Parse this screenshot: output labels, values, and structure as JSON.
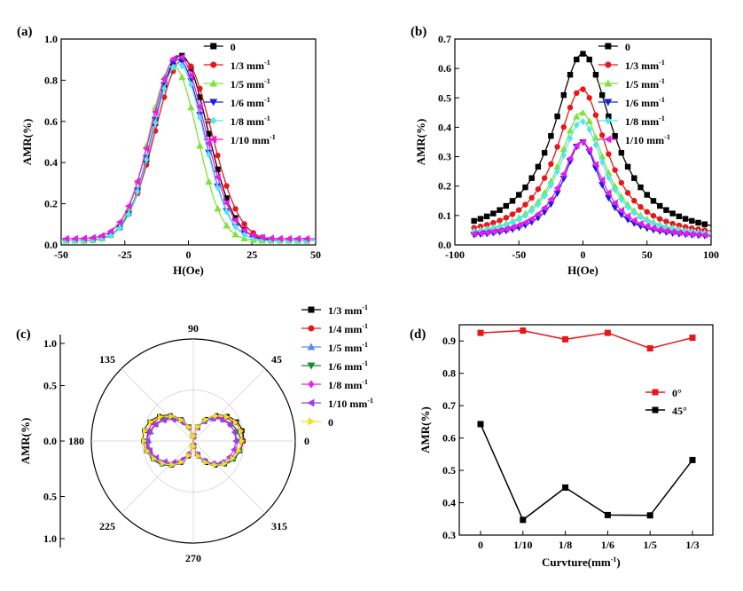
{
  "chart_data": [
    {
      "panel": "(a)",
      "type": "line",
      "xlabel": "H(Oe)",
      "ylabel": "AMR(%)",
      "xlim": [
        -50,
        50
      ],
      "ylim": [
        0,
        1.0
      ],
      "xticks": [
        "-50",
        "-25",
        "0",
        "25",
        "50"
      ],
      "yticks": [
        "0.0",
        "0.2",
        "0.4",
        "0.6",
        "0.8",
        "1.0"
      ],
      "legend_position": "top-right",
      "series": [
        {
          "name": "0",
          "color": "#000000",
          "marker": "square",
          "peak_x": -3,
          "peak_y": 0.92,
          "width": 10.5,
          "base": 0.02
        },
        {
          "name": "1/3 mm-1",
          "color": "#e8161b",
          "marker": "circle",
          "peak_x": -2,
          "peak_y": 0.9,
          "width": 11,
          "base": 0.02
        },
        {
          "name": "1/5 mm-1",
          "color": "#7ee33a",
          "marker": "triangle-up",
          "peak_x": -6,
          "peak_y": 0.87,
          "width": 9.5,
          "base": 0.02
        },
        {
          "name": "1/6 mm-1",
          "color": "#1c1ce0",
          "marker": "triangle-down",
          "peak_x": -4,
          "peak_y": 0.9,
          "width": 10,
          "base": 0.02
        },
        {
          "name": "1/8 mm-1",
          "color": "#4ee8ee",
          "marker": "diamond",
          "peak_x": -4,
          "peak_y": 0.88,
          "width": 10,
          "base": 0.02
        },
        {
          "name": "1/10 mm-1",
          "color": "#e81ce8",
          "marker": "triangle-left",
          "peak_x": -4,
          "peak_y": 0.92,
          "width": 10.5,
          "base": 0.03
        }
      ]
    },
    {
      "panel": "(b)",
      "type": "line",
      "xlabel": "H(Oe)",
      "ylabel": "AMR(%)",
      "xlim": [
        -100,
        100
      ],
      "ylim": [
        0,
        0.7
      ],
      "xticks": [
        "-100",
        "-50",
        "0",
        "50",
        "100"
      ],
      "yticks": [
        "0.0",
        "0.1",
        "0.2",
        "0.3",
        "0.4",
        "0.5",
        "0.6",
        "0.7"
      ],
      "legend_position": "top-right",
      "series": [
        {
          "name": "0",
          "color": "#000000",
          "marker": "square",
          "peak_x": 0,
          "peak_y": 0.65,
          "width": 28,
          "base": 0.02
        },
        {
          "name": "1/3 mm-1",
          "color": "#e8161b",
          "marker": "circle",
          "peak_x": -1,
          "peak_y": 0.53,
          "width": 24,
          "base": 0.02
        },
        {
          "name": "1/5 mm-1",
          "color": "#7ee33a",
          "marker": "triangle-up",
          "peak_x": -1,
          "peak_y": 0.45,
          "width": 22,
          "base": 0.02
        },
        {
          "name": "1/6 mm-1",
          "color": "#1c1ce0",
          "marker": "triangle-down",
          "peak_x": -1,
          "peak_y": 0.35,
          "width": 18,
          "base": 0.02
        },
        {
          "name": "1/8 mm-1",
          "color": "#4ee8ee",
          "marker": "diamond",
          "peak_x": -1,
          "peak_y": 0.42,
          "width": 22,
          "base": 0.02
        },
        {
          "name": "1/10 mm-1",
          "color": "#e81ce8",
          "marker": "triangle-left",
          "peak_x": -1,
          "peak_y": 0.35,
          "width": 20,
          "base": 0.02
        }
      ]
    },
    {
      "panel": "(c)",
      "type": "polar",
      "ylabel": "AMR(%)",
      "angle_labels": [
        "0",
        "45",
        "90",
        "135",
        "180",
        "225",
        "270",
        "315"
      ],
      "radial_ticks": [
        "1.0",
        "0.5",
        "0.0",
        "0.5",
        "1.0"
      ],
      "rlim": [
        0,
        1.0
      ],
      "legend_position": "top-right",
      "series": [
        {
          "name": "1/3 mm-1",
          "color": "#000000",
          "marker": "square",
          "amplitude": 0.5
        },
        {
          "name": "1/4 mm-1",
          "color": "#e8161b",
          "marker": "circle",
          "amplitude": 0.48
        },
        {
          "name": "1/5 mm-1",
          "color": "#5b8cf0",
          "marker": "triangle-up",
          "amplitude": 0.46
        },
        {
          "name": "1/6 mm-1",
          "color": "#1f8a2a",
          "marker": "triangle-down",
          "amplitude": 0.47
        },
        {
          "name": "1/8 mm-1",
          "color": "#e81ce8",
          "marker": "diamond",
          "amplitude": 0.45
        },
        {
          "name": "1/10 mm-1",
          "color": "#a03ce8",
          "marker": "triangle-left",
          "amplitude": 0.44
        },
        {
          "name": "0",
          "color": "#f0e020",
          "marker": "triangle-right",
          "amplitude": 0.49
        }
      ]
    },
    {
      "panel": "(d)",
      "type": "line",
      "xlabel": "Curvture(mm-1)",
      "ylabel": "AMR(%)",
      "categories": [
        "0",
        "1/10",
        "1/8",
        "1/6",
        "1/5",
        "1/3"
      ],
      "ylim": [
        0.3,
        0.95
      ],
      "yticks": [
        "0.3",
        "0.4",
        "0.5",
        "0.6",
        "0.7",
        "0.8",
        "0.9"
      ],
      "legend_position": "middle-right",
      "series": [
        {
          "name": "0°",
          "color": "#e8161b",
          "marker": "square",
          "values": [
            0.925,
            0.932,
            0.905,
            0.925,
            0.877,
            0.91
          ]
        },
        {
          "name": "45°",
          "color": "#000000",
          "marker": "square",
          "values": [
            0.643,
            0.347,
            0.447,
            0.362,
            0.361,
            0.532
          ]
        }
      ]
    }
  ]
}
